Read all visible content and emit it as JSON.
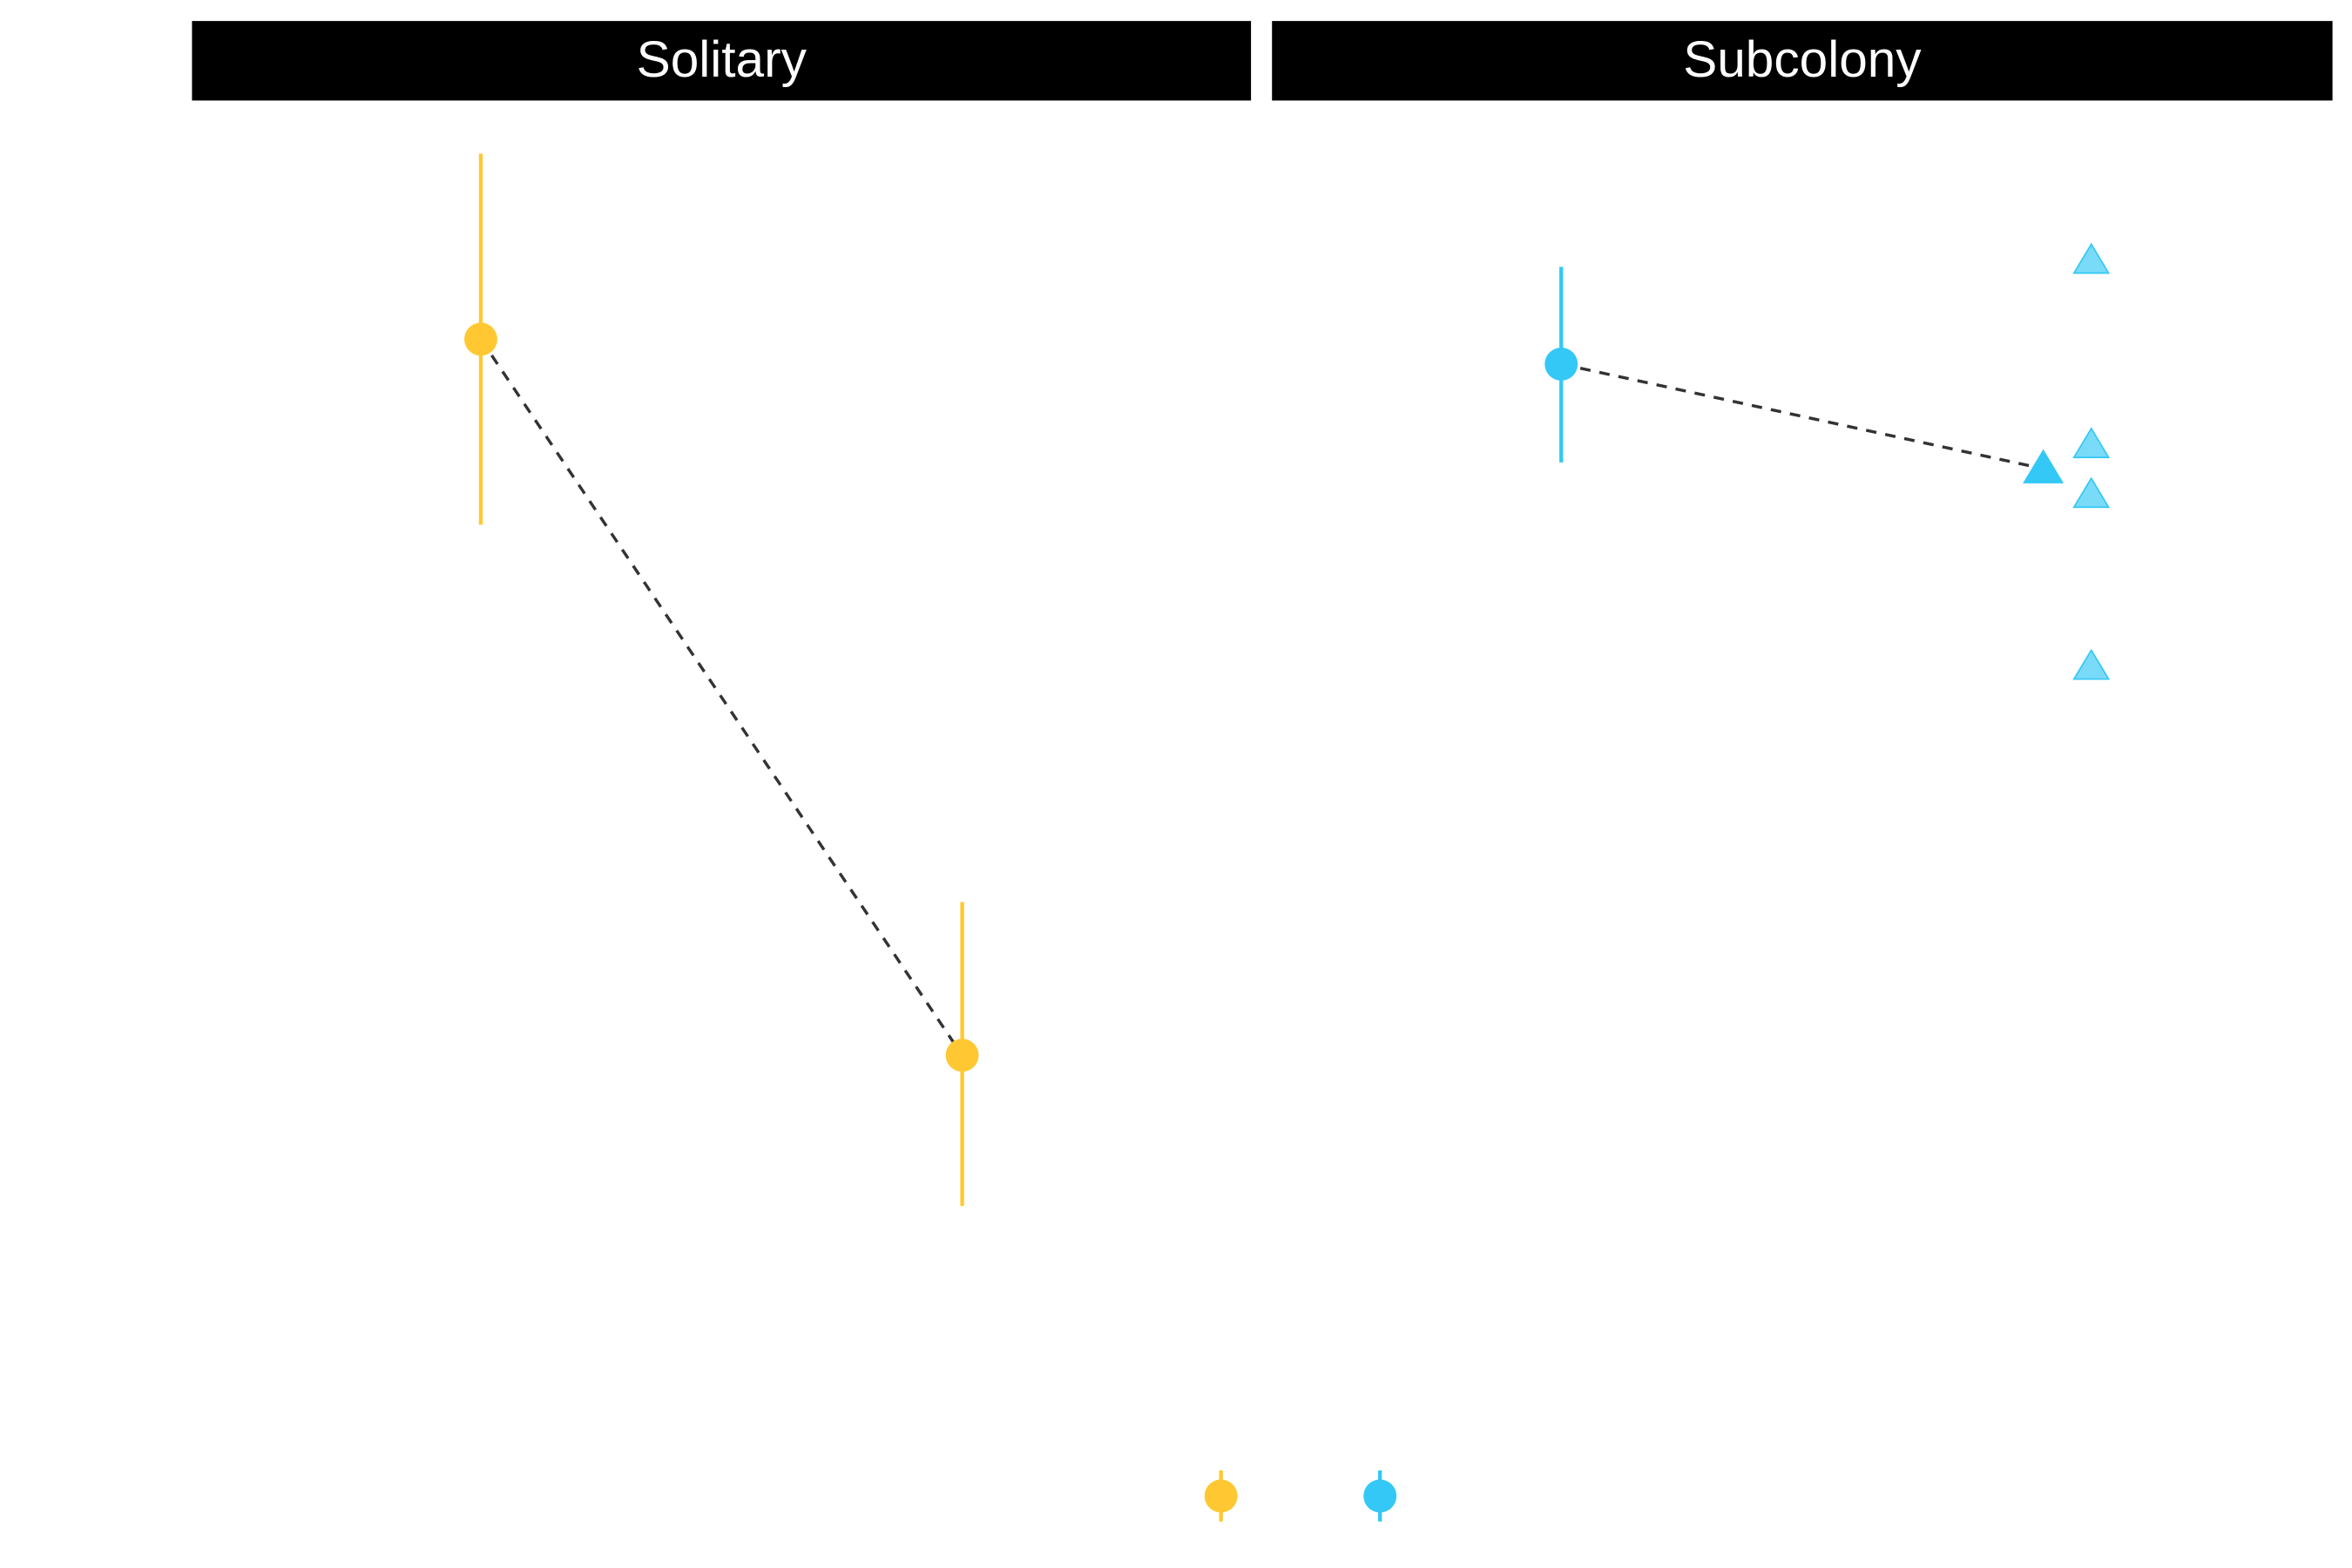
{
  "chart_data": [
    {
      "type": "pointrange",
      "title": "Solitary",
      "categories": [
        null,
        null
      ],
      "ylim": [
        0,
        100
      ],
      "series": [
        {
          "color": "#ffc832",
          "values": [
            81.2,
            23.7
          ],
          "lower": [
            66.3,
            11.6
          ],
          "upper": [
            96.1,
            36.0
          ],
          "shapes": [
            "circle",
            "circle"
          ]
        }
      ]
    },
    {
      "type": "pointrange",
      "title": "Subcolony",
      "categories": [
        null,
        null
      ],
      "ylim": [
        0,
        100
      ],
      "series": [
        {
          "color": "#33c8f5",
          "values": [
            79.2,
            70.8
          ],
          "lower": [
            71.3,
            null
          ],
          "upper": [
            87.0,
            null
          ],
          "shapes": [
            "circle",
            "triangle"
          ],
          "raw": [
            87.5,
            72.7,
            68.7,
            54.9
          ]
        }
      ]
    }
  ]
}
